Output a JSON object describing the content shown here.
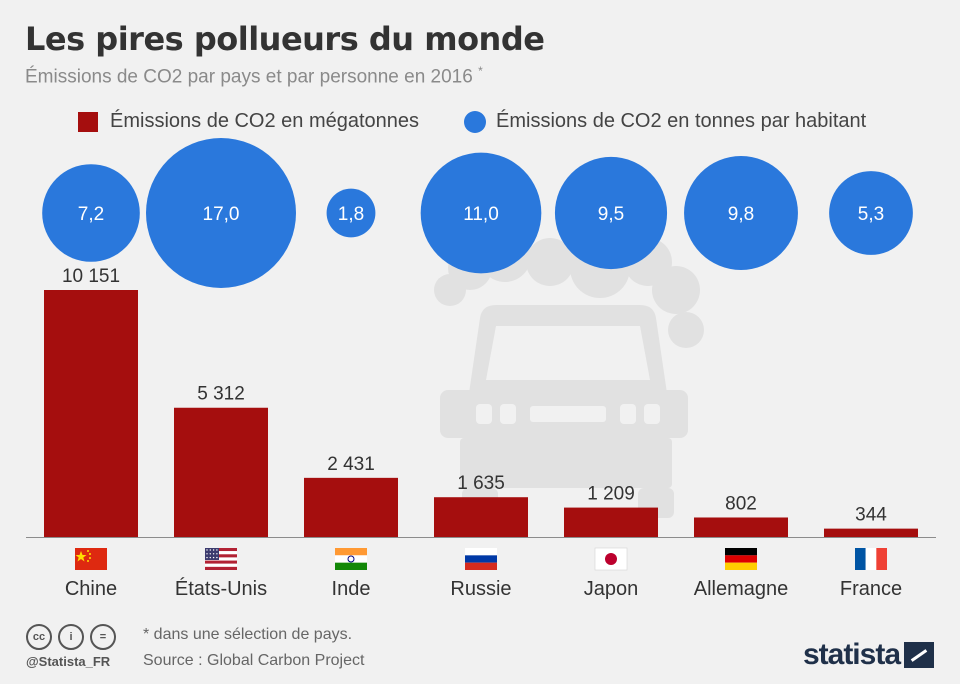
{
  "header": {
    "title": "Les pires pollueurs du monde",
    "subtitle": "Émissions de CO2 par pays et par personne en 2016",
    "subtitle_mark": "*"
  },
  "colors": {
    "bar": "#a50e0e",
    "bubble": "#2a78dc",
    "car_illustration": "#e1e1e1",
    "axis": "#8c8c8c"
  },
  "chart_data": {
    "type": "bar",
    "title": "Les pires pollueurs du monde",
    "categories": [
      "Chine",
      "États-Unis",
      "Inde",
      "Russie",
      "Japon",
      "Allemagne",
      "France"
    ],
    "series": [
      {
        "name": "Émissions de CO2 en mégatonnes",
        "values": [
          10151,
          5312,
          2431,
          1635,
          1209,
          802,
          344
        ],
        "labels": [
          "10 151",
          "5 312",
          "2 431",
          "1 635",
          "1 209",
          "802",
          "344"
        ]
      },
      {
        "name": "Émissions de CO2 en tonnes par habitant",
        "values": [
          7.2,
          17.0,
          1.8,
          11.0,
          9.5,
          9.8,
          5.3
        ],
        "labels": [
          "7,2",
          "17,0",
          "1,8",
          "11,0",
          "9,5",
          "9,8",
          "5,3"
        ],
        "marker": "bubble"
      }
    ],
    "ylim": [
      0,
      10151
    ],
    "xlabel": "",
    "ylabel": "",
    "flags": [
      "china-flag",
      "usa-flag",
      "india-flag",
      "russia-flag",
      "japan-flag",
      "germany-flag",
      "france-flag"
    ]
  },
  "legend": {
    "bar_label": "Émissions de CO2 en mégatonnes",
    "bubble_label": "Émissions de CO2 en tonnes par habitant"
  },
  "footer": {
    "note": "* dans une sélection de pays.",
    "source": "Source : Global Carbon Project",
    "handle": "@Statista_FR",
    "brand": "statista",
    "license_icons": [
      "cc",
      "i",
      "="
    ]
  }
}
